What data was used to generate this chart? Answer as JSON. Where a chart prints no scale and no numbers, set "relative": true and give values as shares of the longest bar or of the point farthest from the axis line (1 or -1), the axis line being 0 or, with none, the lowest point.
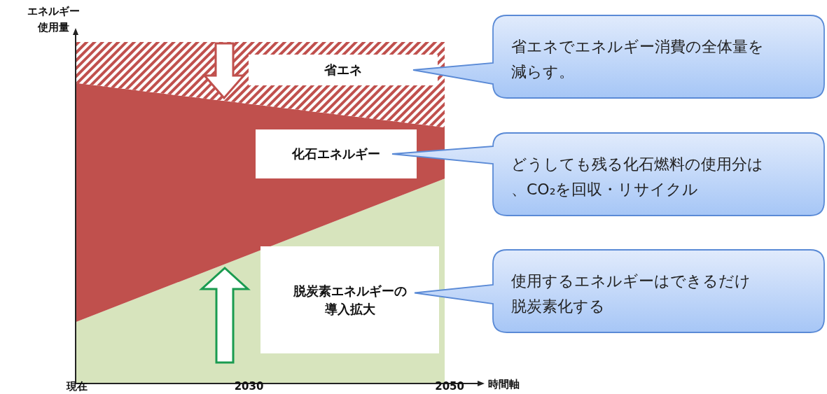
{
  "chart_data": {
    "type": "area",
    "stacked": true,
    "relative": true,
    "categories": [
      "現在",
      "2030",
      "2050"
    ],
    "xlabel": "時間軸",
    "ylabel": "エネルギー使用量",
    "series": [
      {
        "name": "脱炭素エネルギーの導入拡大",
        "color": "#d7e4bd",
        "values": [
          0.18,
          0.39,
          0.6
        ]
      },
      {
        "name": "化石エネルギー",
        "color": "#c0504d",
        "values": [
          0.7,
          0.425,
          0.15
        ]
      },
      {
        "name": "省エネ",
        "color": "#c0504d",
        "values": [
          0.12,
          0.185,
          0.25
        ]
      }
    ],
    "annotations": [
      "省エネでエネルギー消費の全体量を減らす。",
      "どうしても残る化石燃料の使用分は、CO₂を回収・リサイクル",
      "使用するエネルギーはできるだけ脱炭素化する"
    ]
  }
}
